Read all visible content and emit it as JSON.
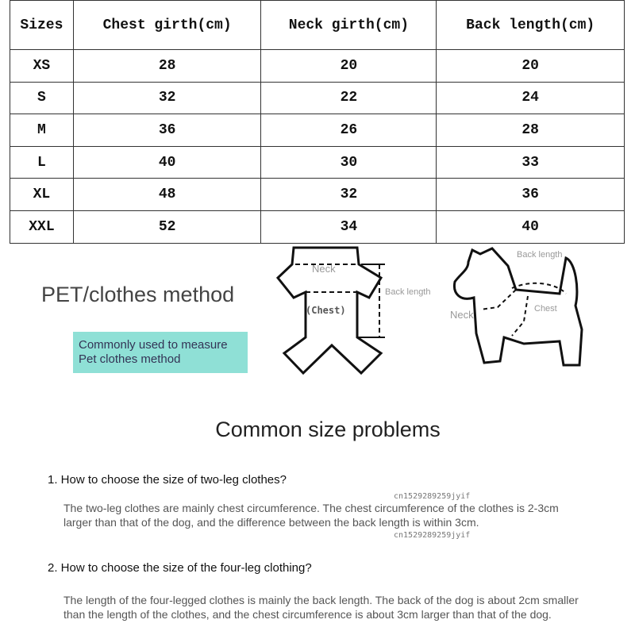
{
  "table": {
    "headers": [
      "Sizes",
      "Chest girth(cm)",
      "Neck girth(cm)",
      "Back length(cm)"
    ],
    "rows": [
      [
        "XS",
        "28",
        "20",
        "20"
      ],
      [
        "S",
        "32",
        "22",
        "24"
      ],
      [
        "M",
        "36",
        "26",
        "28"
      ],
      [
        "L",
        "40",
        "30",
        "33"
      ],
      [
        "XL",
        "48",
        "32",
        "36"
      ],
      [
        "XXL",
        "52",
        "34",
        "40"
      ]
    ]
  },
  "method": {
    "title": "PET/clothes method",
    "box": "Commonly used to measure Pet clothes method",
    "clothes_labels": {
      "neck": "Neck",
      "back": "Back length",
      "chest": "(Chest)"
    },
    "dog_labels": {
      "back": "Back length",
      "neck": "Neck",
      "chest": "Chest"
    }
  },
  "problems": {
    "title": "Common size problems",
    "q1": "1. How to choose the size of two-leg clothes?",
    "a1": "The two-leg clothes are mainly chest circumference. The chest circumference of the clothes is 2-3cm larger than that of the dog, and the difference between the back length is within 3cm.",
    "q2": "2. How to choose the size of the four-leg clothing?",
    "a2": "The length of the four-legged clothes is mainly the back length. The back of the dog is about 2cm smaller than the length of the clothes, and the chest circumference is about 3cm larger than that of the dog.",
    "watermark": "cn1529289259jyif"
  },
  "colors": {
    "box": "#8fe0d6"
  }
}
